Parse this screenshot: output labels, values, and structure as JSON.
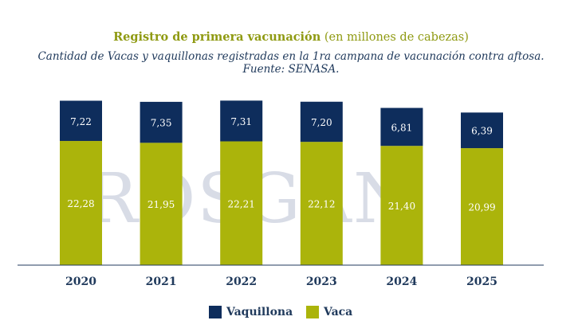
{
  "title_bold": "Registro de primera vacunación",
  "title_rest": "(en millones de cabezas)",
  "subtitle_line1": "Cantidad de Vacas y vaquillonas registradas en la 1ra campana de vacunación contra aftosa.",
  "subtitle_line2": "Fuente: SENASA.",
  "watermark": "ROSGAN",
  "colors": {
    "vaquillona": "#0e2d5c",
    "vaca": "#abb40b",
    "axis": "#203a5c"
  },
  "chart_data": {
    "type": "bar",
    "stacked": true,
    "categories": [
      "2020",
      "2021",
      "2022",
      "2023",
      "2024",
      "2025"
    ],
    "series": [
      {
        "name": "Vaca",
        "values": [
          22.28,
          21.95,
          22.21,
          22.12,
          21.4,
          20.99
        ],
        "labels": [
          "22,28",
          "21,95",
          "22,21",
          "22,12",
          "21,40",
          "20,99"
        ]
      },
      {
        "name": "Vaquillona",
        "values": [
          7.22,
          7.35,
          7.31,
          7.2,
          6.81,
          6.39
        ],
        "labels": [
          "7,22",
          "7,35",
          "7,31",
          "7,20",
          "6,81",
          "6,39"
        ]
      }
    ],
    "legend_position": "bottom",
    "grid": false
  }
}
